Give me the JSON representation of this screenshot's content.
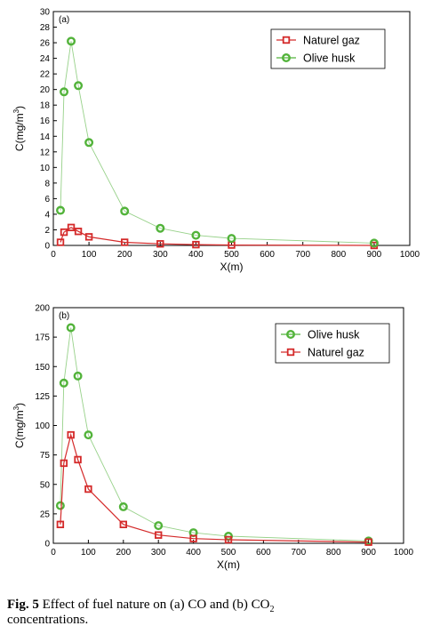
{
  "chart_data": [
    {
      "type": "line",
      "panel_label": "(a)",
      "xlabel": "X(m)",
      "ylabel_parts": [
        "C(mg/m",
        "3",
        ")"
      ],
      "xlim": [
        0,
        1000
      ],
      "ylim": [
        0,
        30
      ],
      "xticks": [
        0,
        100,
        200,
        300,
        400,
        500,
        600,
        700,
        800,
        900,
        1000
      ],
      "yticks": [
        0,
        2,
        4,
        6,
        8,
        10,
        12,
        14,
        16,
        18,
        20,
        22,
        24,
        26,
        28,
        30
      ],
      "grid": false,
      "legend_position": "top-right",
      "series": [
        {
          "name": "Naturel gaz",
          "marker": "square",
          "color": "#d42a2a",
          "x": [
            20,
            30,
            50,
            70,
            100,
            200,
            300,
            400,
            500,
            900
          ],
          "y": [
            0.4,
            1.7,
            2.3,
            1.8,
            1.1,
            0.4,
            0.2,
            0.1,
            0.05,
            0.0
          ]
        },
        {
          "name": "Olive husk",
          "marker": "circle",
          "color": "#52b33a",
          "x": [
            20,
            30,
            50,
            70,
            100,
            200,
            300,
            400,
            500,
            900
          ],
          "y": [
            4.5,
            19.7,
            26.2,
            20.5,
            13.2,
            4.4,
            2.2,
            1.3,
            0.9,
            0.3
          ]
        }
      ]
    },
    {
      "type": "line",
      "panel_label": "(b)",
      "xlabel": "X(m)",
      "ylabel_parts": [
        "C(mg/m",
        "3",
        ")"
      ],
      "xlim": [
        0,
        1000
      ],
      "ylim": [
        0,
        200
      ],
      "xticks": [
        0,
        100,
        200,
        300,
        400,
        500,
        600,
        700,
        800,
        900,
        1000
      ],
      "yticks": [
        0,
        25,
        50,
        75,
        100,
        125,
        150,
        175,
        200
      ],
      "grid": false,
      "legend_position": "top-right",
      "series": [
        {
          "name": "Olive husk",
          "marker": "circle",
          "color": "#52b33a",
          "x": [
            20,
            30,
            50,
            70,
            100,
            200,
            300,
            400,
            500,
            900
          ],
          "y": [
            32,
            136,
            183,
            142,
            92,
            31,
            15,
            9,
            6,
            2
          ]
        },
        {
          "name": "Naturel gaz",
          "marker": "square",
          "color": "#d42a2a",
          "x": [
            20,
            30,
            50,
            70,
            100,
            200,
            300,
            400,
            500,
            900
          ],
          "y": [
            16,
            68,
            92,
            71,
            46,
            16,
            7,
            4,
            3,
            1
          ]
        }
      ]
    }
  ],
  "caption": {
    "label": "Fig. 5",
    "text_main": " Effect of fuel nature on (a) CO and (b) CO",
    "text_sub": "2",
    "text_end": " concentrations."
  }
}
